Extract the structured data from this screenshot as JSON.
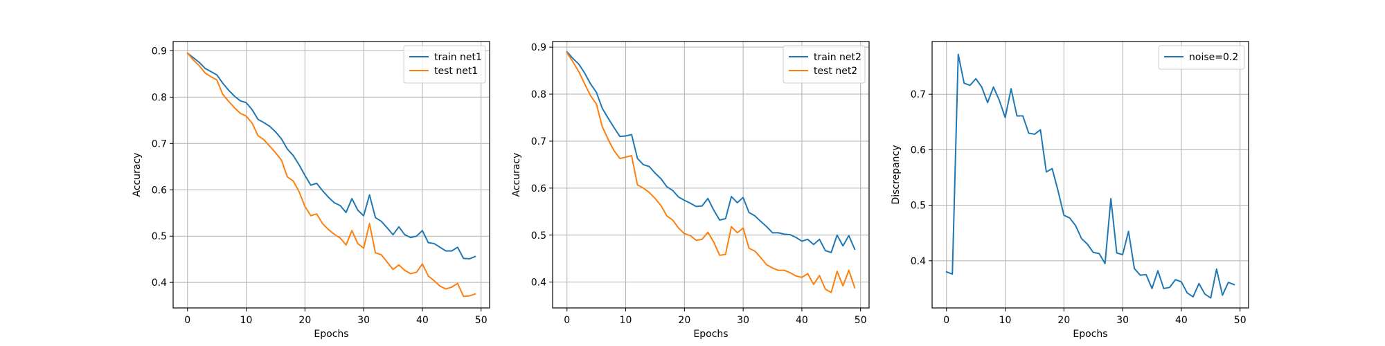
{
  "figure": {
    "background": "#ffffff"
  },
  "chart_data": [
    {
      "type": "line",
      "title": "",
      "xlabel": "Epochs",
      "ylabel": "Accuracy",
      "xlim": [
        -2.45,
        51.45
      ],
      "ylim": [
        0.345,
        0.92
      ],
      "xticks": [
        0,
        10,
        20,
        30,
        40,
        50
      ],
      "yticks": [
        0.4,
        0.5,
        0.6,
        0.7,
        0.8,
        0.9
      ],
      "ytick_labels": [
        "0.4",
        "0.5",
        "0.6",
        "0.7",
        "0.8",
        "0.9"
      ],
      "grid": true,
      "legend": "top-right",
      "x": [
        0,
        1,
        2,
        3,
        4,
        5,
        6,
        7,
        8,
        9,
        10,
        11,
        12,
        13,
        14,
        15,
        16,
        17,
        18,
        19,
        20,
        21,
        22,
        23,
        24,
        25,
        26,
        27,
        28,
        29,
        30,
        31,
        32,
        33,
        34,
        35,
        36,
        37,
        38,
        39,
        40,
        41,
        42,
        43,
        44,
        45,
        46,
        47,
        48,
        49
      ],
      "series": [
        {
          "name": "train net1",
          "color": "#1f77b4",
          "values": [
            0.895,
            0.885,
            0.875,
            0.862,
            0.855,
            0.848,
            0.83,
            0.815,
            0.802,
            0.792,
            0.788,
            0.773,
            0.752,
            0.745,
            0.737,
            0.725,
            0.71,
            0.688,
            0.674,
            0.654,
            0.631,
            0.61,
            0.614,
            0.598,
            0.584,
            0.572,
            0.566,
            0.551,
            0.581,
            0.556,
            0.544,
            0.589,
            0.54,
            0.532,
            0.518,
            0.503,
            0.52,
            0.503,
            0.497,
            0.5,
            0.512,
            0.486,
            0.484,
            0.476,
            0.468,
            0.468,
            0.476,
            0.452,
            0.451,
            0.456
          ]
        },
        {
          "name": "test net1",
          "color": "#ff7f0e",
          "values": [
            0.895,
            0.88,
            0.868,
            0.852,
            0.844,
            0.837,
            0.806,
            0.791,
            0.777,
            0.765,
            0.759,
            0.744,
            0.717,
            0.708,
            0.694,
            0.68,
            0.664,
            0.628,
            0.619,
            0.596,
            0.564,
            0.544,
            0.548,
            0.527,
            0.514,
            0.504,
            0.496,
            0.481,
            0.512,
            0.484,
            0.474,
            0.527,
            0.464,
            0.46,
            0.444,
            0.428,
            0.438,
            0.426,
            0.419,
            0.422,
            0.44,
            0.414,
            0.404,
            0.392,
            0.386,
            0.39,
            0.398,
            0.37,
            0.371,
            0.375
          ]
        }
      ]
    },
    {
      "type": "line",
      "title": "",
      "xlabel": "Epochs",
      "ylabel": "Accuracy",
      "xlim": [
        -2.45,
        51.45
      ],
      "ylim": [
        0.345,
        0.912
      ],
      "xticks": [
        0,
        10,
        20,
        30,
        40,
        50
      ],
      "yticks": [
        0.4,
        0.5,
        0.6,
        0.7,
        0.8,
        0.9
      ],
      "ytick_labels": [
        "0.4",
        "0.5",
        "0.6",
        "0.7",
        "0.8",
        "0.9"
      ],
      "grid": true,
      "legend": "top-right",
      "x": [
        0,
        1,
        2,
        3,
        4,
        5,
        6,
        7,
        8,
        9,
        10,
        11,
        12,
        13,
        14,
        15,
        16,
        17,
        18,
        19,
        20,
        21,
        22,
        23,
        24,
        25,
        26,
        27,
        28,
        29,
        30,
        31,
        32,
        33,
        34,
        35,
        36,
        37,
        38,
        39,
        40,
        41,
        42,
        43,
        44,
        45,
        46,
        47,
        48,
        49
      ],
      "series": [
        {
          "name": "train net2",
          "color": "#1f77b4",
          "values": [
            0.89,
            0.876,
            0.864,
            0.845,
            0.822,
            0.804,
            0.77,
            0.749,
            0.729,
            0.71,
            0.711,
            0.714,
            0.663,
            0.65,
            0.646,
            0.632,
            0.62,
            0.603,
            0.595,
            0.581,
            0.574,
            0.568,
            0.561,
            0.562,
            0.578,
            0.553,
            0.532,
            0.535,
            0.582,
            0.569,
            0.58,
            0.548,
            0.541,
            0.529,
            0.518,
            0.505,
            0.505,
            0.502,
            0.501,
            0.495,
            0.487,
            0.491,
            0.48,
            0.491,
            0.467,
            0.463,
            0.5,
            0.477,
            0.499,
            0.47
          ]
        },
        {
          "name": "test net2",
          "color": "#ff7f0e",
          "values": [
            0.888,
            0.869,
            0.848,
            0.822,
            0.797,
            0.779,
            0.731,
            0.704,
            0.68,
            0.663,
            0.666,
            0.669,
            0.607,
            0.6,
            0.591,
            0.578,
            0.563,
            0.541,
            0.532,
            0.515,
            0.503,
            0.499,
            0.489,
            0.491,
            0.506,
            0.485,
            0.457,
            0.459,
            0.518,
            0.505,
            0.515,
            0.472,
            0.466,
            0.452,
            0.437,
            0.43,
            0.425,
            0.425,
            0.42,
            0.413,
            0.41,
            0.418,
            0.395,
            0.414,
            0.385,
            0.378,
            0.423,
            0.392,
            0.425,
            0.388
          ]
        }
      ]
    },
    {
      "type": "line",
      "title": "",
      "xlabel": "Epochs",
      "ylabel": "Discrepancy",
      "xlim": [
        -2.45,
        51.45
      ],
      "ylim": [
        0.315,
        0.795
      ],
      "xticks": [
        0,
        10,
        20,
        30,
        40,
        50
      ],
      "yticks": [
        0.4,
        0.5,
        0.6,
        0.7
      ],
      "ytick_labels": [
        "0.4",
        "0.5",
        "0.6",
        "0.7"
      ],
      "grid": true,
      "legend": "top-right",
      "x": [
        0,
        1,
        2,
        3,
        4,
        5,
        6,
        7,
        8,
        9,
        10,
        11,
        12,
        13,
        14,
        15,
        16,
        17,
        18,
        19,
        20,
        21,
        22,
        23,
        24,
        25,
        26,
        27,
        28,
        29,
        30,
        31,
        32,
        33,
        34,
        35,
        36,
        37,
        38,
        39,
        40,
        41,
        42,
        43,
        44,
        45,
        46,
        47,
        48,
        49
      ],
      "series": [
        {
          "name": "noise=0.2",
          "color": "#1f77b4",
          "values": [
            0.38,
            0.376,
            0.772,
            0.72,
            0.716,
            0.728,
            0.713,
            0.685,
            0.713,
            0.689,
            0.658,
            0.71,
            0.661,
            0.661,
            0.63,
            0.628,
            0.636,
            0.56,
            0.566,
            0.526,
            0.482,
            0.477,
            0.463,
            0.44,
            0.43,
            0.415,
            0.413,
            0.395,
            0.512,
            0.414,
            0.411,
            0.453,
            0.386,
            0.374,
            0.375,
            0.35,
            0.382,
            0.35,
            0.352,
            0.366,
            0.362,
            0.342,
            0.335,
            0.359,
            0.34,
            0.333,
            0.385,
            0.338,
            0.361,
            0.357
          ]
        }
      ]
    }
  ]
}
